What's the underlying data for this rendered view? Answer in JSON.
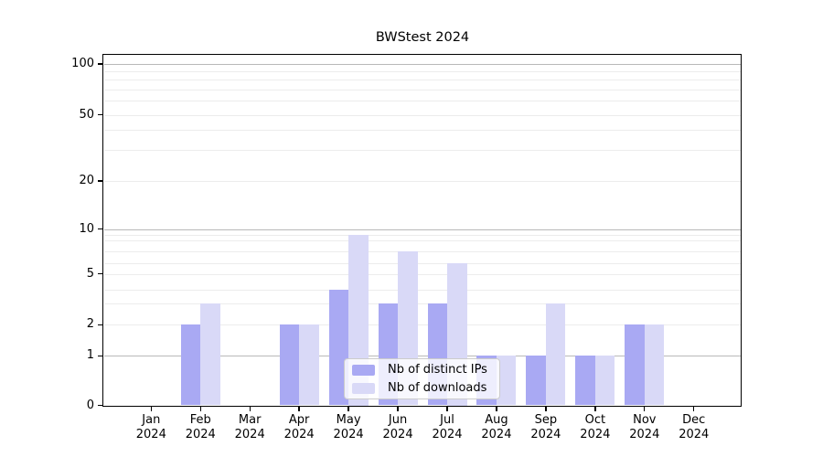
{
  "chart_data": {
    "type": "bar",
    "title": "BWStest 2024",
    "x_axis": {
      "months": [
        "Jan",
        "Feb",
        "Mar",
        "Apr",
        "May",
        "Jun",
        "Jul",
        "Aug",
        "Sep",
        "Oct",
        "Nov",
        "Dec"
      ],
      "year": "2024"
    },
    "y_axis": {
      "tick_labels": [
        0,
        1,
        2,
        5,
        10,
        20,
        50,
        100
      ],
      "ylim": [
        0,
        100
      ],
      "scale": "log-like with zero baseline",
      "grid": "major dark lines at 1/10/100, light minor lines at 2-9, 20-90"
    },
    "series": [
      {
        "name": "Nb of distinct IPs",
        "color": "#a9a9f3",
        "values": [
          0,
          2,
          0,
          2,
          4,
          3,
          3,
          1,
          1,
          1,
          2,
          0
        ]
      },
      {
        "name": "Nb of downloads",
        "color": "#d9d9f7",
        "values": [
          0,
          3,
          0,
          2,
          9,
          7,
          6,
          1,
          3,
          1,
          2,
          0
        ]
      }
    ],
    "legend": {
      "position": "lower center",
      "entries": [
        "Nb of distinct IPs",
        "Nb of downloads"
      ]
    }
  }
}
